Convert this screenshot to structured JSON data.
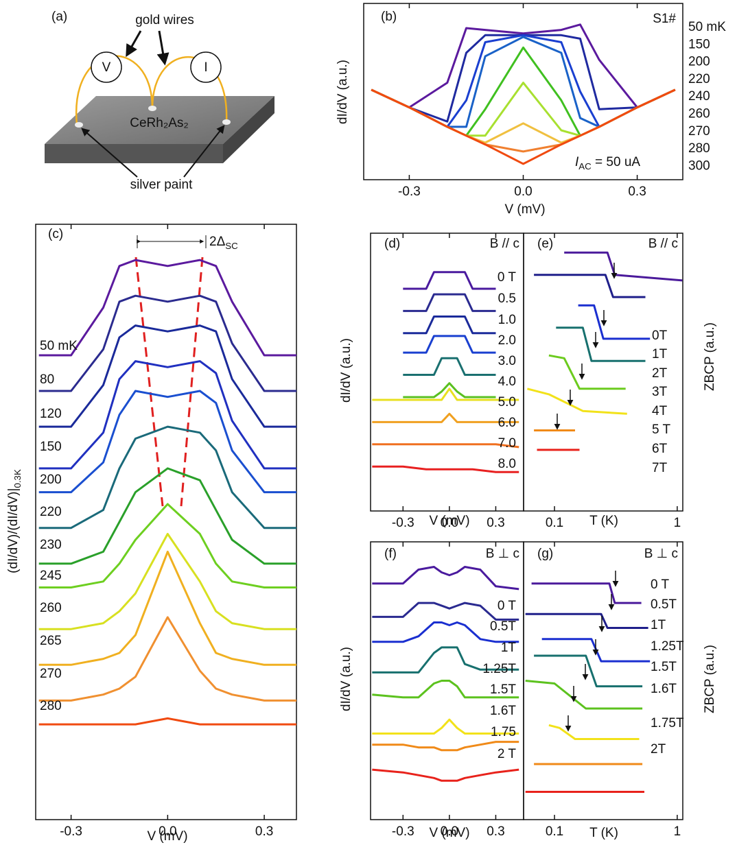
{
  "diagram": {
    "panel_label": "(a)",
    "wires_label": "gold wires",
    "voltmeter": "V",
    "ammeter": "I",
    "sample": "CeRh₂As₂",
    "paint_label": "silver paint"
  },
  "chart_data": [
    {
      "type": "line",
      "panel_label": "(b)",
      "note": "S1#",
      "current": {
        "symbol": "I",
        "subscript": "AC",
        "text": " = 50 uA"
      },
      "x_label": "V (mV)",
      "y_label": "dI/dV (a.u.)",
      "xlim": [
        -0.42,
        0.42
      ],
      "ylim": [
        0,
        100
      ],
      "xticks": [
        -0.3,
        {
          "value": 0,
          "label": "0.0"
        },
        0.3
      ],
      "x": [
        -0.4,
        -0.3,
        -0.2,
        -0.15,
        -0.1,
        0,
        0.1,
        0.15,
        0.2,
        0.3,
        0.4
      ],
      "series": [
        {
          "name": "50 mK",
          "color": "#5b1a9e",
          "values": [
            51,
            41,
            55,
            86,
            85,
            83,
            85,
            88,
            68,
            41,
            51
          ]
        },
        {
          "name": "150",
          "color": "#1f2aa0",
          "values": [
            51,
            41,
            33,
            72,
            82,
            82,
            82,
            80,
            40,
            41,
            51
          ]
        },
        {
          "name": "200",
          "color": "#1a3fd0",
          "values": [
            51,
            41,
            30,
            45,
            78,
            82,
            78,
            50,
            30,
            41,
            51
          ]
        },
        {
          "name": "220",
          "color": "#1a62c8",
          "values": [
            51,
            41,
            30,
            30,
            70,
            81,
            72,
            35,
            30,
            41,
            51
          ]
        },
        {
          "name": "240",
          "color": "#40c020",
          "values": [
            51,
            41,
            30,
            25,
            40,
            75,
            45,
            25,
            30,
            41,
            51
          ]
        },
        {
          "name": "260",
          "color": "#a8e030",
          "values": [
            51,
            41,
            30,
            25,
            25,
            55,
            28,
            25,
            30,
            41,
            51
          ]
        },
        {
          "name": "270",
          "color": "#f0c040",
          "values": [
            51,
            41,
            30,
            25,
            21,
            32,
            21,
            25,
            30,
            41,
            51
          ]
        },
        {
          "name": "280",
          "color": "#f08030",
          "values": [
            51,
            41,
            30,
            25,
            20,
            16,
            20,
            25,
            30,
            41,
            51
          ]
        },
        {
          "name": "300",
          "color": "#f04a10",
          "values": [
            51,
            41,
            30,
            25,
            20,
            9,
            20,
            25,
            30,
            41,
            51
          ]
        }
      ]
    },
    {
      "type": "line",
      "panel_label": "(c)",
      "gap": {
        "text": "2Δ",
        "subscript": "SC"
      },
      "x_label": "V (mV)",
      "y_label": {
        "text": "(dI/dV)/(dI/dV)|",
        "subscript": "0.3K"
      },
      "xlim": [
        -0.41,
        0.4
      ],
      "ylim": [
        0,
        100
      ],
      "xticks": [
        -0.3,
        {
          "value": 0,
          "label": "0.0"
        },
        0.3
      ],
      "x": [
        -0.4,
        -0.3,
        -0.2,
        -0.15,
        -0.1,
        0,
        0.1,
        0.15,
        0.2,
        0.3,
        0.4
      ],
      "series": [
        {
          "name": "50 mK",
          "color": "#5b1a9e",
          "values": [
            78,
            78,
            86,
            93,
            94,
            93,
            94,
            93,
            87,
            78,
            78
          ]
        },
        {
          "name": "80",
          "color": "#2b2b8f",
          "values": [
            72,
            72,
            79,
            87,
            88,
            87,
            88,
            87,
            80,
            72,
            72
          ]
        },
        {
          "name": "120",
          "color": "#1a2a9a",
          "values": [
            66,
            66,
            73,
            81,
            83,
            82,
            83,
            82,
            74,
            66,
            66
          ]
        },
        {
          "name": "150",
          "color": "#2030c0",
          "values": [
            59,
            59,
            65,
            74,
            77,
            76,
            77,
            75,
            67,
            59,
            59
          ]
        },
        {
          "name": "200",
          "color": "#1a4fd0",
          "values": [
            55,
            55,
            60,
            68,
            72,
            71,
            72,
            70,
            62,
            55,
            55
          ]
        },
        {
          "name": "220",
          "color": "#1a6a7a",
          "values": [
            49,
            49,
            52,
            59,
            64,
            66,
            65,
            62,
            55,
            49,
            49
          ]
        },
        {
          "name": "230",
          "color": "#2aa02a",
          "values": [
            43,
            43,
            45,
            50,
            55,
            59,
            57,
            52,
            47,
            43,
            43
          ]
        },
        {
          "name": "245",
          "color": "#6dcf20",
          "values": [
            39,
            39,
            40,
            43,
            47,
            53,
            48,
            43,
            40,
            39,
            39
          ]
        },
        {
          "name": "260",
          "color": "#d8e020",
          "values": [
            32,
            32,
            33,
            35,
            38,
            48,
            40,
            35,
            33,
            32,
            32
          ]
        },
        {
          "name": "265",
          "color": "#f0b020",
          "values": [
            26,
            26,
            27,
            28,
            31,
            45,
            33,
            28,
            27,
            26,
            26
          ]
        },
        {
          "name": "270",
          "color": "#f09030",
          "values": [
            20,
            20,
            21,
            22,
            24,
            34,
            25,
            22,
            21,
            20,
            20
          ]
        },
        {
          "name": "280",
          "color": "#f04a10",
          "values": [
            16,
            16,
            16,
            16,
            16,
            17,
            16,
            16,
            16,
            16,
            16
          ]
        }
      ]
    },
    {
      "type": "line",
      "panel_label": "(d)",
      "field": "B // c",
      "x_label": "V (mV)",
      "y_label": "dI/dV (a.u.)",
      "xlim": [
        -0.51,
        0.48
      ],
      "ylim": [
        0,
        100
      ],
      "xticks": [
        -0.3,
        {
          "value": 0,
          "label": "0.0"
        },
        0.3
      ],
      "x": [
        -0.5,
        -0.3,
        -0.15,
        -0.1,
        -0.05,
        0,
        0.05,
        0.1,
        0.15,
        0.3,
        0.45
      ],
      "series": [
        {
          "name": "0 T",
          "color": "#4a1a9e",
          "values": [
            null,
            80,
            80,
            86,
            86,
            86,
            86,
            86,
            80,
            80,
            null
          ]
        },
        {
          "name": "0.5",
          "color": "#2a2a90",
          "values": [
            null,
            72,
            72,
            78,
            78,
            78,
            78,
            78,
            72,
            72,
            null
          ]
        },
        {
          "name": "1.0",
          "color": "#1a2a9a",
          "values": [
            null,
            64,
            64,
            70,
            70,
            70,
            70,
            70,
            64,
            64,
            null
          ]
        },
        {
          "name": "2.0",
          "color": "#1a40d0",
          "values": [
            null,
            57,
            57,
            63,
            63,
            63,
            63,
            63,
            57,
            57,
            null
          ]
        },
        {
          "name": "3.0",
          "color": "#1a7070",
          "values": [
            null,
            49,
            49,
            49,
            55,
            55,
            55,
            49,
            49,
            49,
            null
          ]
        },
        {
          "name": "4.0",
          "color": "#5ac020",
          "values": [
            null,
            41,
            41,
            41,
            43,
            46,
            43,
            41,
            41,
            41,
            null
          ]
        },
        {
          "name": "5.0",
          "color": "#e8e020",
          "values": [
            40,
            40,
            40,
            40,
            40,
            44,
            40,
            40,
            40,
            40,
            40
          ]
        },
        {
          "name": "6.0",
          "color": "#f0a020",
          "values": [
            32,
            32,
            32,
            32,
            32,
            35,
            32,
            32,
            32,
            32,
            32
          ]
        },
        {
          "name": "7.0",
          "color": "#f07020",
          "values": [
            24,
            24,
            24,
            24,
            24,
            24,
            24,
            24,
            24,
            24,
            23
          ]
        },
        {
          "name": "8.0",
          "color": "#e82020",
          "values": [
            16,
            16,
            15,
            15,
            15,
            15,
            15,
            15,
            15,
            14,
            14
          ]
        }
      ]
    },
    {
      "type": "line",
      "panel_label": "(e)",
      "field": "B // c",
      "xscale": "log",
      "x_label": "T (K)",
      "y_label": "ZBCP (a.u.)",
      "xlim": [
        0.056,
        1.11
      ],
      "ylim": [
        0,
        100
      ],
      "xticks": [
        0.1,
        1
      ],
      "series": [
        {
          "name": "0T",
          "color": "#4b1a9b",
          "x": [
            0.12,
            0.27,
            0.31,
            1.1
          ],
          "values": [
            93,
            93,
            85,
            83
          ]
        },
        {
          "name": "1T",
          "color": "#1f1f8a",
          "x": [
            0.068,
            0.26,
            0.3,
            0.55
          ],
          "values": [
            85,
            85,
            77,
            77
          ]
        },
        {
          "name": "2T",
          "color": "#1a2fd0",
          "x": [
            0.156,
            0.21,
            0.25,
            0.6
          ],
          "values": [
            74,
            74,
            62,
            62
          ]
        },
        {
          "name": "3T",
          "color": "#17706e",
          "x": [
            0.103,
            0.17,
            0.2,
            0.55
          ],
          "values": [
            66,
            66,
            54,
            54
          ]
        },
        {
          "name": "4T",
          "color": "#6ccb1e",
          "x": [
            0.09,
            0.12,
            0.16,
            0.38
          ],
          "values": [
            56,
            55,
            44,
            44
          ]
        },
        {
          "name": "5 T",
          "color": "#f2e21a",
          "x": [
            0.06,
            0.09,
            0.17,
            0.39
          ],
          "values": [
            44,
            42,
            36,
            35
          ]
        },
        {
          "name": "6T",
          "color": "#f08a18",
          "x": [
            0.068,
            0.147
          ],
          "values": [
            29,
            29
          ]
        },
        {
          "name": "7T",
          "color": "#e8221b",
          "x": [
            0.072,
            0.16
          ],
          "values": [
            22,
            22
          ]
        }
      ]
    },
    {
      "type": "line",
      "panel_label": "(f)",
      "field": "B ⊥ c",
      "x_label": "V (mV)",
      "y_label": "dI/dV (a.u.)",
      "xlim": [
        -0.51,
        0.48
      ],
      "ylim": [
        0,
        100
      ],
      "xticks": [
        -0.3,
        {
          "value": 0,
          "label": "0.0"
        },
        0.3
      ],
      "x": [
        -0.5,
        -0.3,
        -0.2,
        -0.1,
        -0.05,
        0,
        0.05,
        0.1,
        0.2,
        0.3,
        0.45
      ],
      "series": [
        {
          "name": "0 T",
          "color": "#4a1a9e",
          "values": [
            85,
            85,
            90,
            91,
            89,
            88,
            89,
            91,
            90,
            84,
            83
          ]
        },
        {
          "name": "0.5T",
          "color": "#2a2a90",
          "values": [
            73,
            73,
            78,
            78,
            77,
            76,
            77,
            78,
            77,
            72,
            72
          ]
        },
        {
          "name": "1T",
          "color": "#1a2fd0",
          "values": [
            64,
            64,
            66,
            71,
            71,
            70,
            71,
            70,
            65,
            64,
            64
          ]
        },
        {
          "name": "1.25T",
          "color": "#17706e",
          "values": [
            53,
            53,
            53,
            60,
            62,
            62,
            62,
            56,
            54,
            54,
            54
          ]
        },
        {
          "name": "1.5T",
          "color": "#5cc21e",
          "values": [
            45,
            44,
            44,
            49,
            50,
            50,
            48,
            44,
            44,
            44,
            44
          ]
        },
        {
          "name": "1.6T",
          "color": "#f2e21a",
          "values": [
            31,
            31,
            31,
            31,
            33,
            36,
            33,
            31,
            31,
            31,
            31
          ]
        },
        {
          "name": "1.75",
          "color": "#f08a18",
          "values": [
            27,
            27,
            26,
            26,
            25,
            25,
            25,
            26,
            27,
            28,
            28
          ]
        },
        {
          "name": "2 T",
          "color": "#e8221b",
          "values": [
            18,
            17,
            16,
            15,
            14,
            14,
            14,
            15,
            16,
            17,
            18
          ]
        }
      ]
    },
    {
      "type": "line",
      "panel_label": "(g)",
      "field": "B ⊥ c",
      "xscale": "log",
      "x_label": "T (K)",
      "y_label": "ZBCP (a.u.)",
      "xlim": [
        0.056,
        1.11
      ],
      "ylim": [
        0,
        100
      ],
      "xticks": [
        0.1,
        1
      ],
      "series": [
        {
          "name": "0 T",
          "color": "#4b1a9b",
          "x": [
            0.065,
            0.28,
            0.31,
            0.51
          ],
          "values": [
            85,
            85,
            78,
            78
          ]
        },
        {
          "name": "0.5T",
          "color": "#1f1f8a",
          "x": [
            0.058,
            0.24,
            0.27,
            0.58
          ],
          "values": [
            74,
            74,
            69,
            69
          ]
        },
        {
          "name": "1T",
          "color": "#1a2fd0",
          "x": [
            0.079,
            0.2,
            0.24,
            0.6
          ],
          "values": [
            65,
            65,
            57,
            57
          ]
        },
        {
          "name": "1.25T",
          "color": "#17706e",
          "x": [
            0.068,
            0.18,
            0.22,
            0.52
          ],
          "values": [
            59,
            59,
            48,
            48
          ]
        },
        {
          "name": "1.5T",
          "color": "#5cc21e",
          "x": [
            0.058,
            0.1,
            0.18,
            0.52
          ],
          "values": [
            50,
            49,
            40,
            40
          ]
        },
        {
          "name": "1.6T",
          "color": "#f2e21a",
          "x": [
            0.09,
            0.11,
            0.147,
            0.49
          ],
          "values": [
            34,
            33,
            29,
            29
          ]
        },
        {
          "name": "1.75T",
          "color": "#f08a18",
          "x": [
            0.068,
            0.52
          ],
          "values": [
            20,
            20
          ]
        },
        {
          "name": "2T",
          "color": "#e8221b",
          "x": [
            0.058,
            0.54
          ],
          "values": [
            10,
            10
          ]
        }
      ]
    }
  ]
}
